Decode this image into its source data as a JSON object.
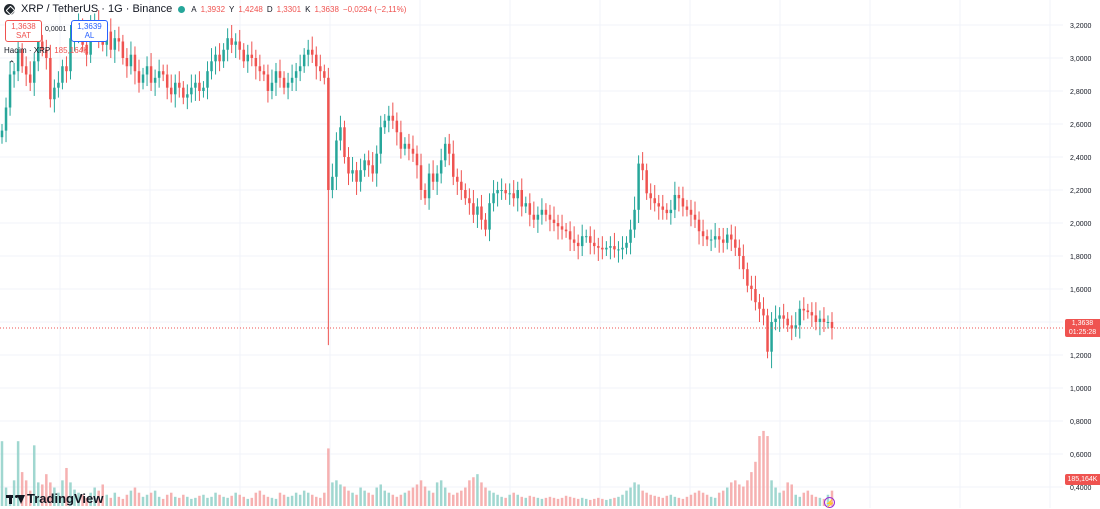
{
  "header": {
    "symbol": "XRP / TetherUS · 1G · Binance",
    "open_label": "A",
    "open_value": "1,3932",
    "high_label": "Y",
    "high_value": "1,4248",
    "low_label": "D",
    "low_value": "1,3301",
    "close_label": "K",
    "close_value": "1,3638",
    "change": "−0,0294 (−2,11%)"
  },
  "trade": {
    "sell_price": "1,3638",
    "sell_label": "SAT",
    "spread": "0,0001",
    "buy_price": "1,3639",
    "buy_label": "AL"
  },
  "volume_legend": {
    "label": "Hacim · XRP",
    "value": "185,164K"
  },
  "current_price": {
    "value": "1,3638",
    "countdown": "01:25:28"
  },
  "volume_tag": "185,164K",
  "brand": "TradingView",
  "colors": {
    "up": "#26a69a",
    "down": "#ef5350",
    "up_vol": "#8fd0c8",
    "down_vol": "#f5a3a3",
    "grid": "#f0f3fa"
  },
  "chart_data": {
    "type": "candlestick",
    "symbol": "XRP/USDT",
    "interval": "1G",
    "y_axis_ticks": [
      "3,2000",
      "3,0000",
      "2,8000",
      "2,6000",
      "2,4000",
      "2,2000",
      "2,0000",
      "1,8000",
      "1,6000",
      "1,4000",
      "1,2000",
      "1,0000",
      "0,8000",
      "0,6000",
      "0,4000"
    ],
    "ylim": [
      0.4,
      3.25
    ],
    "current_price": 1.3638,
    "close_series": [
      2.56,
      2.7,
      2.9,
      2.92,
      3.05,
      2.95,
      2.9,
      2.85,
      2.98,
      3.1,
      3.05,
      3.0,
      2.75,
      2.82,
      2.85,
      2.95,
      2.92,
      3.12,
      3.15,
      3.2,
      3.08,
      3.02,
      3.18,
      3.22,
      3.12,
      3.08,
      3.16,
      3.05,
      3.12,
      3.1,
      3.0,
      2.95,
      3.02,
      2.92,
      2.85,
      2.9,
      2.95,
      2.85,
      2.88,
      2.92,
      2.9,
      2.82,
      2.78,
      2.85,
      2.82,
      2.76,
      2.78,
      2.82,
      2.85,
      2.8,
      2.82,
      2.92,
      2.98,
      3.02,
      2.98,
      3.05,
      3.12,
      3.08,
      3.1,
      3.05,
      2.98,
      3.02,
      3.0,
      2.95,
      2.92,
      2.9,
      2.8,
      2.85,
      2.92,
      2.88,
      2.82,
      2.85,
      2.88,
      2.92,
      2.95,
      3.02,
      3.05,
      3.02,
      2.95,
      2.92,
      2.88,
      2.2,
      2.28,
      2.5,
      2.58,
      2.4,
      2.3,
      2.32,
      2.25,
      2.32,
      2.38,
      2.35,
      2.3,
      2.42,
      2.58,
      2.62,
      2.65,
      2.62,
      2.55,
      2.45,
      2.48,
      2.45,
      2.42,
      2.35,
      2.2,
      2.15,
      2.3,
      2.25,
      2.3,
      2.38,
      2.48,
      2.42,
      2.28,
      2.25,
      2.2,
      2.15,
      2.12,
      2.05,
      2.1,
      2.02,
      1.96,
      2.12,
      2.18,
      2.2,
      2.2,
      2.18,
      2.18,
      2.15,
      2.2,
      2.1,
      2.12,
      2.05,
      2.02,
      2.05,
      2.08,
      2.05,
      2.02,
      2.0,
      1.98,
      1.96,
      1.95,
      1.9,
      1.88,
      1.86,
      1.92,
      1.92,
      1.88,
      1.86,
      1.85,
      1.84,
      1.85,
      1.86,
      1.84,
      1.84,
      1.85,
      1.88,
      1.96,
      2.08,
      2.36,
      2.32,
      2.18,
      2.15,
      2.12,
      2.1,
      2.08,
      2.06,
      2.08,
      2.17,
      2.15,
      2.1,
      2.08,
      2.05,
      2.02,
      1.95,
      1.92,
      1.9,
      1.9,
      1.92,
      1.9,
      1.88,
      1.93,
      1.9,
      1.85,
      1.8,
      1.72,
      1.62,
      1.6,
      1.52,
      1.48,
      1.44,
      1.22,
      1.4,
      1.42,
      1.44,
      1.42,
      1.38,
      1.36,
      1.38,
      1.48,
      1.47,
      1.46,
      1.44,
      1.4,
      1.42,
      1.4,
      1.4,
      1.3638
    ],
    "volume_series": [
      1.0,
      0.55,
      0.48,
      0.62,
      1.0,
      0.7,
      0.62,
      0.52,
      0.96,
      0.6,
      0.58,
      0.68,
      0.6,
      0.55,
      0.5,
      0.62,
      0.74,
      0.6,
      0.53,
      0.5,
      0.48,
      0.45,
      0.5,
      0.55,
      0.52,
      0.58,
      0.48,
      0.45,
      0.5,
      0.46,
      0.44,
      0.48,
      0.52,
      0.55,
      0.5,
      0.46,
      0.48,
      0.5,
      0.52,
      0.46,
      0.44,
      0.48,
      0.5,
      0.46,
      0.45,
      0.48,
      0.46,
      0.44,
      0.45,
      0.47,
      0.48,
      0.45,
      0.46,
      0.5,
      0.48,
      0.46,
      0.45,
      0.47,
      0.5,
      0.48,
      0.46,
      0.44,
      0.45,
      0.5,
      0.52,
      0.48,
      0.46,
      0.45,
      0.44,
      0.5,
      0.48,
      0.46,
      0.47,
      0.5,
      0.48,
      0.52,
      0.5,
      0.48,
      0.46,
      0.45,
      0.5,
      0.93,
      0.6,
      0.62,
      0.58,
      0.56,
      0.52,
      0.5,
      0.48,
      0.55,
      0.52,
      0.5,
      0.48,
      0.55,
      0.58,
      0.52,
      0.5,
      0.48,
      0.46,
      0.48,
      0.5,
      0.52,
      0.55,
      0.58,
      0.62,
      0.56,
      0.52,
      0.5,
      0.6,
      0.62,
      0.55,
      0.5,
      0.48,
      0.5,
      0.52,
      0.55,
      0.62,
      0.65,
      0.68,
      0.6,
      0.55,
      0.52,
      0.5,
      0.48,
      0.46,
      0.45,
      0.48,
      0.5,
      0.48,
      0.46,
      0.45,
      0.47,
      0.46,
      0.45,
      0.44,
      0.45,
      0.46,
      0.45,
      0.44,
      0.45,
      0.47,
      0.46,
      0.45,
      0.44,
      0.45,
      0.44,
      0.43,
      0.44,
      0.45,
      0.44,
      0.43,
      0.44,
      0.45,
      0.46,
      0.48,
      0.52,
      0.55,
      0.6,
      0.58,
      0.52,
      0.5,
      0.48,
      0.47,
      0.46,
      0.45,
      0.47,
      0.48,
      0.46,
      0.45,
      0.44,
      0.46,
      0.48,
      0.5,
      0.52,
      0.5,
      0.48,
      0.46,
      0.45,
      0.5,
      0.52,
      0.55,
      0.6,
      0.62,
      0.58,
      0.56,
      0.62,
      0.7,
      0.8,
      1.05,
      1.1,
      1.05,
      0.62,
      0.55,
      0.5,
      0.52,
      0.6,
      0.58,
      0.48,
      0.46,
      0.5,
      0.52,
      0.48,
      0.46,
      0.45,
      0.44,
      0.48,
      0.52
    ]
  }
}
